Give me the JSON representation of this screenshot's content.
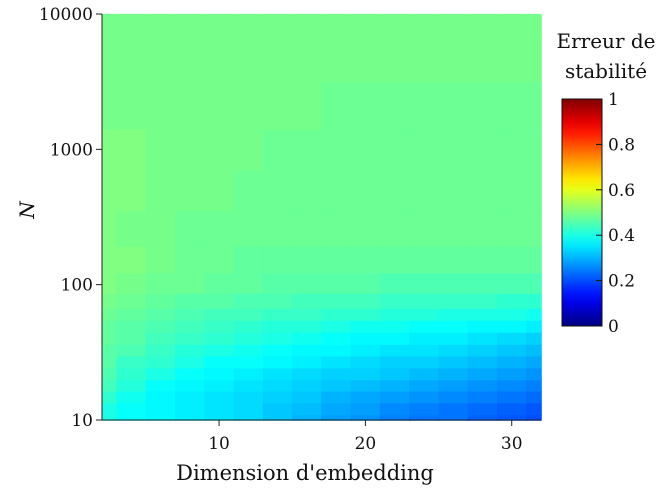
{
  "chart_data": {
    "type": "heatmap",
    "title": "",
    "xlabel": "Dimension d'embedding",
    "ylabel": "N",
    "x_scale": "linear",
    "y_scale": "log",
    "xlim": [
      2,
      32
    ],
    "ylim": [
      10,
      10000
    ],
    "x_ticks": [
      10,
      20,
      30
    ],
    "x_tick_labels": [
      "10",
      "20",
      "30"
    ],
    "y_ticks": [
      10,
      100,
      1000,
      10000
    ],
    "y_tick_labels": [
      "10",
      "100",
      "1000",
      "10000"
    ],
    "grid": false,
    "colorbar": {
      "title_lines": [
        "Erreur de",
        "stabilité"
      ],
      "colormap": "jet",
      "range": [
        0,
        1
      ],
      "ticks": [
        0,
        0.2,
        0.4,
        0.6,
        0.8,
        1
      ],
      "tick_labels": [
        "0",
        "0.2",
        "0.4",
        "0.6",
        "0.8",
        "1"
      ],
      "placement": "right"
    },
    "x": [
      2,
      4,
      6,
      8,
      10,
      12,
      14,
      16,
      18,
      20,
      22,
      24,
      26,
      28,
      30,
      32
    ],
    "y": [
      10,
      12,
      15,
      18,
      22,
      27,
      33,
      40,
      50,
      60,
      75,
      100,
      150,
      250,
      500,
      1000,
      2000,
      5000,
      10000
    ],
    "values": [
      [
        0.4,
        0.38,
        0.37,
        0.36,
        0.35,
        0.34,
        0.32,
        0.3,
        0.28,
        0.27,
        0.25,
        0.24,
        0.24,
        0.22,
        0.21,
        0.2
      ],
      [
        0.4,
        0.38,
        0.37,
        0.36,
        0.35,
        0.34,
        0.32,
        0.31,
        0.29,
        0.28,
        0.26,
        0.25,
        0.24,
        0.23,
        0.22,
        0.21
      ],
      [
        0.42,
        0.39,
        0.37,
        0.36,
        0.35,
        0.34,
        0.33,
        0.32,
        0.3,
        0.29,
        0.28,
        0.27,
        0.26,
        0.25,
        0.24,
        0.23
      ],
      [
        0.44,
        0.41,
        0.38,
        0.37,
        0.36,
        0.35,
        0.34,
        0.33,
        0.32,
        0.31,
        0.3,
        0.29,
        0.28,
        0.27,
        0.26,
        0.25
      ],
      [
        0.45,
        0.42,
        0.4,
        0.38,
        0.37,
        0.36,
        0.35,
        0.34,
        0.33,
        0.33,
        0.32,
        0.31,
        0.3,
        0.29,
        0.28,
        0.27
      ],
      [
        0.46,
        0.43,
        0.42,
        0.4,
        0.38,
        0.38,
        0.37,
        0.36,
        0.35,
        0.34,
        0.33,
        0.33,
        0.32,
        0.31,
        0.3,
        0.29
      ],
      [
        0.46,
        0.45,
        0.43,
        0.41,
        0.4,
        0.39,
        0.38,
        0.37,
        0.37,
        0.36,
        0.35,
        0.35,
        0.34,
        0.33,
        0.32,
        0.31
      ],
      [
        0.47,
        0.46,
        0.44,
        0.43,
        0.42,
        0.41,
        0.4,
        0.39,
        0.38,
        0.37,
        0.37,
        0.36,
        0.36,
        0.35,
        0.34,
        0.33
      ],
      [
        0.47,
        0.46,
        0.45,
        0.44,
        0.43,
        0.42,
        0.41,
        0.41,
        0.4,
        0.39,
        0.39,
        0.38,
        0.38,
        0.37,
        0.37,
        0.36
      ],
      [
        0.48,
        0.47,
        0.46,
        0.45,
        0.44,
        0.44,
        0.43,
        0.43,
        0.42,
        0.42,
        0.41,
        0.41,
        0.4,
        0.4,
        0.4,
        0.39
      ],
      [
        0.49,
        0.48,
        0.47,
        0.46,
        0.46,
        0.45,
        0.45,
        0.44,
        0.44,
        0.44,
        0.43,
        0.43,
        0.43,
        0.43,
        0.42,
        0.42
      ],
      [
        0.5,
        0.49,
        0.48,
        0.48,
        0.47,
        0.47,
        0.46,
        0.46,
        0.46,
        0.46,
        0.45,
        0.45,
        0.45,
        0.45,
        0.45,
        0.45
      ],
      [
        0.5,
        0.5,
        0.49,
        0.48,
        0.48,
        0.47,
        0.47,
        0.47,
        0.47,
        0.47,
        0.47,
        0.47,
        0.47,
        0.47,
        0.47,
        0.47
      ],
      [
        0.5,
        0.49,
        0.49,
        0.48,
        0.48,
        0.48,
        0.48,
        0.48,
        0.48,
        0.48,
        0.48,
        0.48,
        0.48,
        0.48,
        0.48,
        0.48
      ],
      [
        0.5,
        0.5,
        0.49,
        0.49,
        0.49,
        0.48,
        0.48,
        0.48,
        0.48,
        0.48,
        0.48,
        0.48,
        0.48,
        0.48,
        0.48,
        0.48
      ],
      [
        0.5,
        0.5,
        0.49,
        0.49,
        0.49,
        0.49,
        0.48,
        0.48,
        0.48,
        0.48,
        0.48,
        0.48,
        0.48,
        0.48,
        0.48,
        0.48
      ],
      [
        0.49,
        0.49,
        0.49,
        0.49,
        0.49,
        0.49,
        0.49,
        0.49,
        0.48,
        0.48,
        0.48,
        0.48,
        0.48,
        0.48,
        0.48,
        0.48
      ],
      [
        0.49,
        0.49,
        0.49,
        0.49,
        0.49,
        0.49,
        0.49,
        0.49,
        0.49,
        0.49,
        0.49,
        0.49,
        0.49,
        0.49,
        0.49,
        0.49
      ],
      [
        0.49,
        0.49,
        0.49,
        0.49,
        0.49,
        0.49,
        0.49,
        0.49,
        0.49,
        0.49,
        0.49,
        0.49,
        0.49,
        0.49,
        0.49,
        0.49
      ]
    ]
  }
}
